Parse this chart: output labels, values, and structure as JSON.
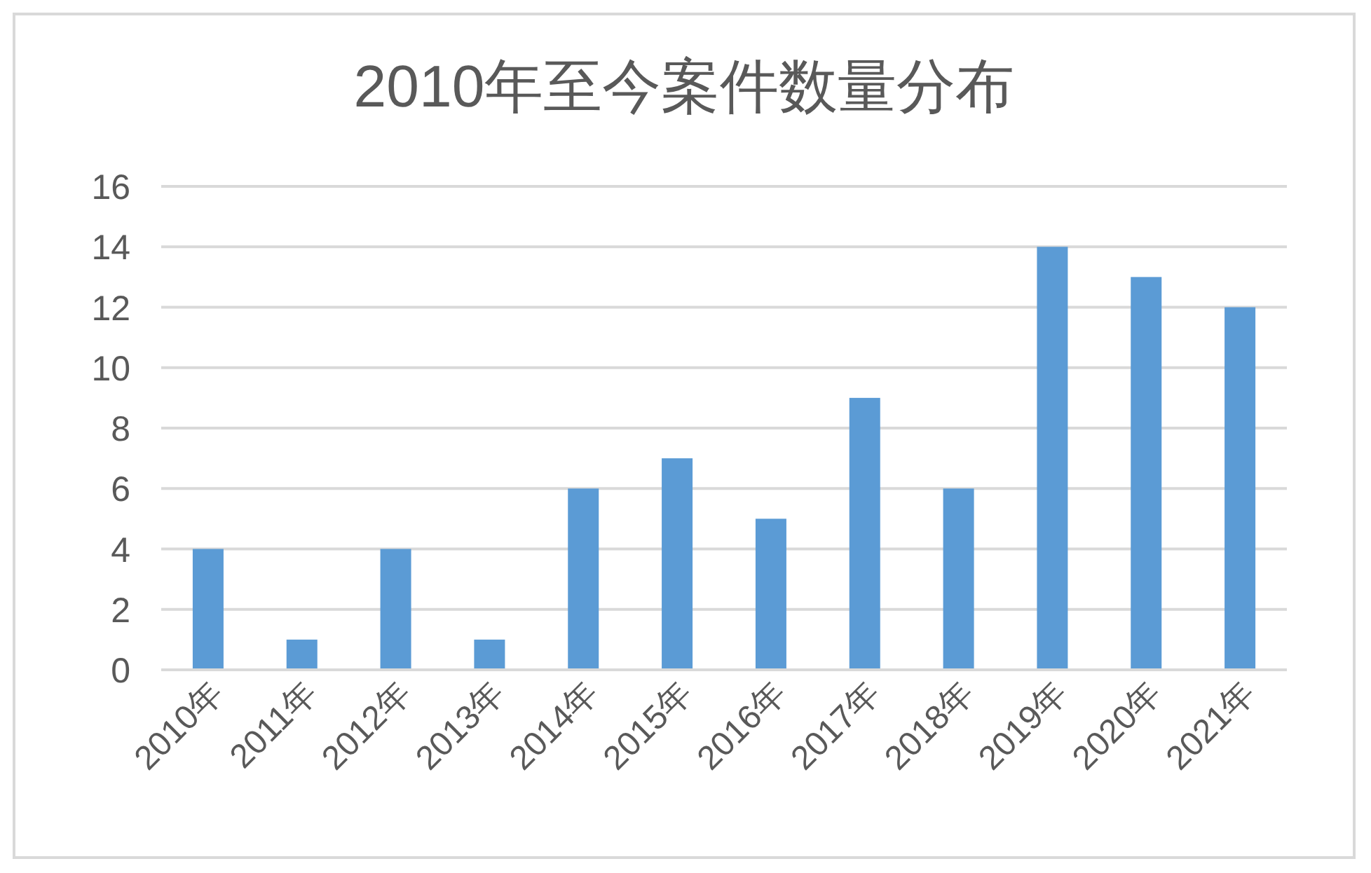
{
  "chart_data": {
    "type": "bar",
    "title": "2010年至今案件数量分布",
    "categories": [
      "2010年",
      "2011年",
      "2012年",
      "2013年",
      "2014年",
      "2015年",
      "2016年",
      "2017年",
      "2018年",
      "2019年",
      "2020年",
      "2021年"
    ],
    "values": [
      4,
      1,
      4,
      1,
      6,
      7,
      5,
      9,
      6,
      14,
      13,
      12
    ],
    "color": "#5b9bd5",
    "ylim": [
      0,
      16
    ],
    "yticks": [
      0,
      2,
      4,
      6,
      8,
      10,
      12,
      14,
      16
    ],
    "grid": "y"
  }
}
